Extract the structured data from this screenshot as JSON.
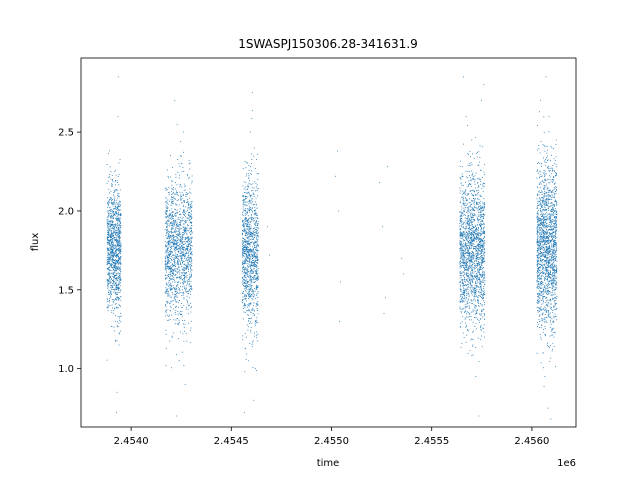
{
  "chart_data": {
    "type": "scatter",
    "title": "1SWASPJ150306.28-341631.9",
    "xlabel": "time",
    "ylabel": "flux",
    "x_offset_label": "1e6",
    "xlim": [
      2453750,
      2456220
    ],
    "ylim": [
      0.63,
      2.97
    ],
    "x_ticks": [
      2454000,
      2454500,
      2455000,
      2455500,
      2456000
    ],
    "x_tick_labels": [
      "2.4540",
      "2.4545",
      "2.4550",
      "2.4555",
      "2.4560"
    ],
    "y_ticks": [
      1.0,
      1.5,
      2.0,
      2.5
    ],
    "y_tick_labels": [
      "1.0",
      "1.5",
      "2.0",
      "2.5"
    ],
    "grid": false,
    "marker_color": "#1f77b4",
    "series": [
      {
        "points": [
          [
            2453886,
            1.72
          ],
          [
            2453892,
            1.55
          ],
          [
            2453898,
            1.81
          ],
          [
            2453905,
            1.68
          ],
          [
            2453912,
            1.9
          ],
          [
            2453918,
            1.62
          ],
          [
            2453925,
            1.75
          ],
          [
            2453931,
            1.47
          ],
          [
            2453938,
            2.05
          ],
          [
            2453944,
            1.7
          ],
          [
            2453899,
            2.25
          ],
          [
            2453921,
            1.3
          ],
          [
            2453934,
            2.6
          ],
          [
            2453936,
            2.85
          ],
          [
            2453930,
            0.85
          ],
          [
            2453927,
            0.72
          ],
          [
            2453940,
            1.15
          ],
          [
            2453895,
            1.4
          ],
          [
            2454178,
            1.72
          ],
          [
            2454188,
            1.85
          ],
          [
            2454198,
            1.6
          ],
          [
            2454210,
            1.95
          ],
          [
            2454222,
            1.5
          ],
          [
            2454235,
            1.78
          ],
          [
            2454248,
            1.66
          ],
          [
            2454260,
            2.1
          ],
          [
            2454272,
            1.55
          ],
          [
            2454285,
            1.82
          ],
          [
            2454296,
            1.7
          ],
          [
            2454218,
            2.7
          ],
          [
            2454230,
            2.55
          ],
          [
            2454246,
            2.35
          ],
          [
            2454262,
            2.5
          ],
          [
            2454205,
            1.2
          ],
          [
            2454240,
            1.05
          ],
          [
            2454228,
            0.7
          ],
          [
            2454270,
            0.9
          ],
          [
            2454290,
            2.3
          ],
          [
            2454300,
            1.3
          ],
          [
            2454560,
            1.75
          ],
          [
            2454570,
            1.58
          ],
          [
            2454580,
            1.9
          ],
          [
            2454590,
            1.65
          ],
          [
            2454600,
            2.05
          ],
          [
            2454610,
            1.48
          ],
          [
            2454620,
            1.8
          ],
          [
            2454628,
            1.7
          ],
          [
            2454595,
            2.5
          ],
          [
            2454605,
            2.75
          ],
          [
            2454615,
            2.4
          ],
          [
            2454575,
            1.2
          ],
          [
            2454585,
            1.05
          ],
          [
            2454612,
            0.8
          ],
          [
            2454622,
            1.3
          ],
          [
            2454565,
            0.72
          ],
          [
            2454632,
            2.2
          ],
          [
            2454680,
            1.9
          ],
          [
            2454690,
            1.72
          ],
          [
            2455030,
            2.38
          ],
          [
            2455035,
            2.0
          ],
          [
            2455040,
            1.3
          ],
          [
            2455045,
            1.55
          ],
          [
            2455020,
            2.22
          ],
          [
            2455240,
            2.18
          ],
          [
            2455255,
            1.9
          ],
          [
            2455270,
            1.45
          ],
          [
            2455280,
            2.28
          ],
          [
            2455262,
            1.35
          ],
          [
            2455350,
            1.7
          ],
          [
            2455360,
            1.6
          ],
          [
            2455650,
            1.75
          ],
          [
            2455665,
            1.6
          ],
          [
            2455680,
            1.92
          ],
          [
            2455695,
            1.68
          ],
          [
            2455710,
            2.05
          ],
          [
            2455725,
            1.5
          ],
          [
            2455740,
            1.82
          ],
          [
            2455755,
            1.7
          ],
          [
            2455658,
            2.85
          ],
          [
            2455672,
            2.6
          ],
          [
            2455690,
            2.3
          ],
          [
            2455705,
            1.15
          ],
          [
            2455720,
            0.95
          ],
          [
            2455735,
            0.7
          ],
          [
            2455748,
            2.7
          ],
          [
            2455760,
            2.8
          ],
          [
            2455745,
            1.25
          ],
          [
            2455700,
            2.45
          ],
          [
            2456030,
            1.78
          ],
          [
            2456045,
            1.62
          ],
          [
            2456060,
            1.95
          ],
          [
            2456075,
            1.7
          ],
          [
            2456090,
            2.1
          ],
          [
            2456105,
            1.52
          ],
          [
            2456118,
            1.85
          ],
          [
            2456070,
            2.85
          ],
          [
            2456085,
            2.6
          ],
          [
            2456100,
            2.4
          ],
          [
            2456055,
            1.1
          ],
          [
            2456065,
            0.95
          ],
          [
            2456080,
            0.75
          ],
          [
            2456095,
            0.68
          ],
          [
            2456110,
            1.2
          ],
          [
            2456040,
            2.3
          ],
          [
            2456120,
            2.0
          ]
        ]
      }
    ],
    "dense_segments": [
      {
        "x_start": 2453880,
        "x_end": 2453950,
        "center": 1.75,
        "spread": 0.2,
        "count": 1100
      },
      {
        "x_start": 2454170,
        "x_end": 2454305,
        "center": 1.75,
        "spread": 0.22,
        "count": 1400
      },
      {
        "x_start": 2454555,
        "x_end": 2454635,
        "center": 1.73,
        "spread": 0.24,
        "count": 1100
      },
      {
        "x_start": 2455640,
        "x_end": 2455765,
        "center": 1.75,
        "spread": 0.24,
        "count": 1700
      },
      {
        "x_start": 2456025,
        "x_end": 2456125,
        "center": 1.77,
        "spread": 0.26,
        "count": 1700
      }
    ]
  }
}
